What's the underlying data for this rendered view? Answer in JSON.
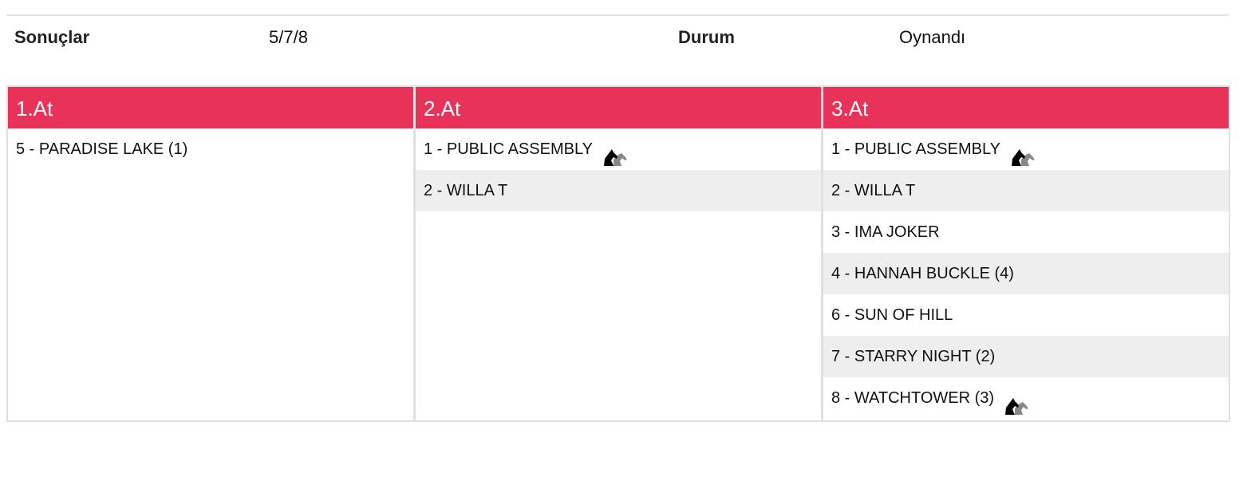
{
  "summary": {
    "results_label": "Sonuçlar",
    "results_value": "5/7/8",
    "status_label": "Durum",
    "status_value": "Oynandı"
  },
  "colors": {
    "header": "#e8325a",
    "alt_row": "#eeeeee"
  },
  "columns": [
    {
      "title": "1.At",
      "rows": [
        {
          "text": "5 - PARADISE LAKE (1)",
          "icon": null
        }
      ]
    },
    {
      "title": "2.At",
      "rows": [
        {
          "text": "1 - PUBLIC ASSEMBLY",
          "icon": "coupled-horse-icon"
        },
        {
          "text": "2 - WILLA T",
          "icon": null
        }
      ]
    },
    {
      "title": "3.At",
      "rows": [
        {
          "text": "1 - PUBLIC ASSEMBLY",
          "icon": "coupled-horse-icon"
        },
        {
          "text": "2 - WILLA T",
          "icon": null
        },
        {
          "text": "3 - IMA JOKER",
          "icon": null
        },
        {
          "text": "4 - HANNAH BUCKLE (4)",
          "icon": null
        },
        {
          "text": "6 - SUN OF HILL",
          "icon": null
        },
        {
          "text": "7 - STARRY NIGHT (2)",
          "icon": null
        },
        {
          "text": "8 - WATCHTOWER (3)",
          "icon": "coupled-horse-icon"
        }
      ]
    }
  ]
}
